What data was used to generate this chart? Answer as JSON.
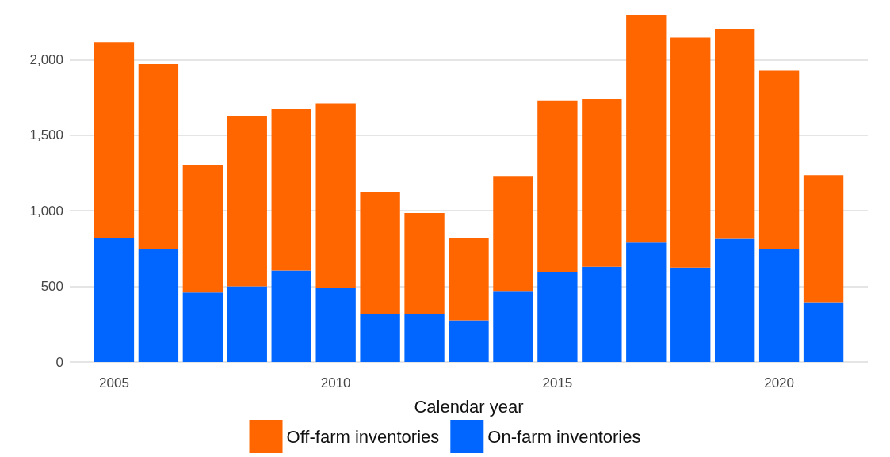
{
  "chart_data": {
    "type": "bar",
    "xlabel": "Calendar year",
    "stacked": true,
    "x": [
      2005,
      2006,
      2007,
      2008,
      2009,
      2010,
      2011,
      2012,
      2013,
      2014,
      2015,
      2016,
      2017,
      2018,
      2019,
      2020,
      2021
    ],
    "series": [
      {
        "name": "On-farm inventories",
        "color": "#0066ff",
        "values": [
          820,
          745,
          460,
          500,
          605,
          490,
          315,
          315,
          275,
          465,
          595,
          630,
          790,
          625,
          815,
          745,
          395
        ]
      },
      {
        "name": "Off-farm inventories",
        "color": "#ff6600",
        "values": [
          1295,
          1225,
          845,
          1125,
          1070,
          1220,
          810,
          670,
          545,
          765,
          1135,
          1110,
          1505,
          1520,
          1385,
          1180,
          840
        ]
      }
    ],
    "xlim": [
      2004,
      2022
    ],
    "xticks": [
      2005,
      2010,
      2015,
      2020
    ],
    "ylim": [
      0,
      2300
    ],
    "yticks": [
      0,
      500,
      {
        "value": 1000,
        "label": "1,000"
      },
      {
        "value": 1500,
        "label": "1,500"
      },
      {
        "value": 2000,
        "label": "2,000"
      }
    ],
    "grid": "y",
    "legend": "bottom"
  }
}
